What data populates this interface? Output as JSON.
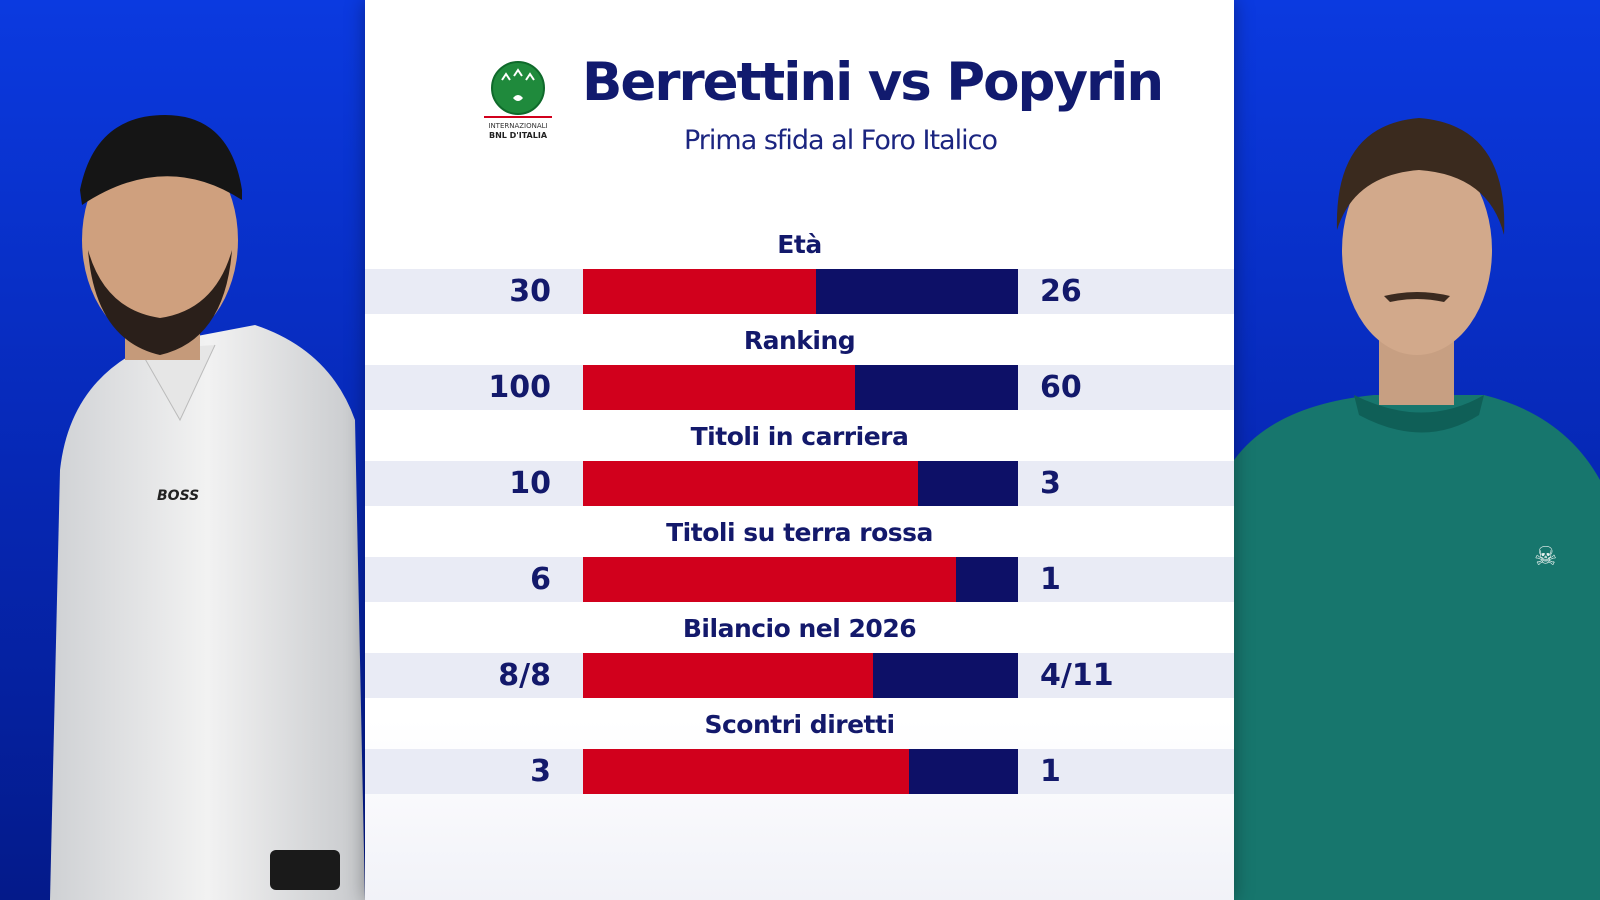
{
  "header": {
    "title": "Berrettini vs Popyrin",
    "subtitle": "Prima sfida al Foro Italico",
    "logo": {
      "icon": "internazionali-bnl-ditalia-logo",
      "line1": "INTERNAZIONALI",
      "line2": "BNL D'ITALIA"
    }
  },
  "colors": {
    "left_player": "#d1001c",
    "right_player": "#0d1067",
    "background": "#0a2fc7"
  },
  "players": {
    "left": {
      "shirt_text": "BOSS"
    },
    "right": {}
  },
  "stats": [
    {
      "label": "Età",
      "left": "30",
      "right": "26",
      "left_share": 0.535
    },
    {
      "label": "Ranking",
      "left": "100",
      "right": "60",
      "left_share": 0.625
    },
    {
      "label": "Titoli in carriera",
      "left": "10",
      "right": "3",
      "left_share": 0.77
    },
    {
      "label": "Titoli su terra rossa",
      "left": "6",
      "right": "1",
      "left_share": 0.857
    },
    {
      "label": "Bilancio nel 2026",
      "left": "8/8",
      "right": "4/11",
      "left_share": 0.667
    },
    {
      "label": "Scontri diretti",
      "left": "3",
      "right": "1",
      "left_share": 0.75
    }
  ]
}
